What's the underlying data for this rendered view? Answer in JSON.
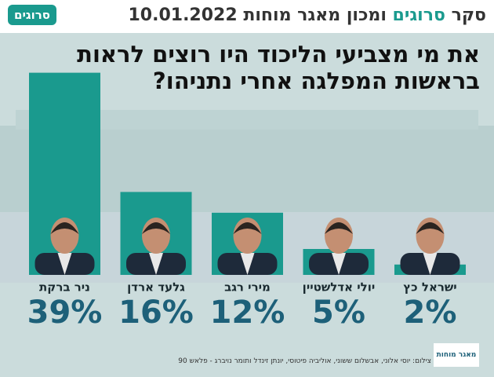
{
  "header": {
    "survey": "סקר",
    "brand": "סרוגים",
    "institute": "ומכון מאגר מוחות",
    "date": "10.01.2022",
    "logo": "סרוגים"
  },
  "chart_data": {
    "type": "bar",
    "title_lines": [
      "את מי מצביעי הליכוד היו רוצים לראות",
      "בראשות המפלגה אחרי נתניהו?"
    ],
    "categories": [
      "ניר ברקת",
      "גלעד ארדן",
      "מירי רגב",
      "יולי אדלשטיין",
      "ישראל כץ"
    ],
    "values": [
      39,
      16,
      12,
      5,
      2
    ],
    "value_labels": [
      "39%",
      "16%",
      "12%",
      "5%",
      "2%"
    ],
    "color": "#1a9a8e"
  },
  "footer": {
    "credit": "צילום: יוסי אלוני, אבשלום ששוני, אוליביה פיטוסי, יונתן זינדל ותומר נויברג - פלאש 90",
    "logo": "מאגר מוחות"
  }
}
